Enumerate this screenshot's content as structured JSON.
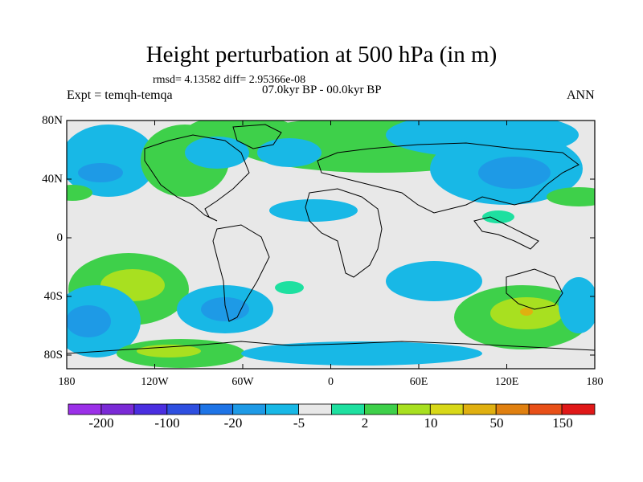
{
  "title": "Height perturbation at 500 hPa (in m)",
  "stats": "rmsd= 4.13582 diff= 2.95366e-08",
  "expt": "Expt = temqh-temqa",
  "period": "07.0kyr BP - 00.0kyr BP",
  "season": "ANN",
  "map": {
    "lat_labels": [
      "80N",
      "40N",
      "0",
      "40S",
      "80S"
    ],
    "lon_labels": [
      "180",
      "120W",
      "60W",
      "0",
      "60E",
      "120E",
      "180"
    ],
    "background_color": "#e8e8e8"
  },
  "colorbar": {
    "colors": [
      "#9b30e8",
      "#7a2ad6",
      "#4a2ee0",
      "#2e4fe0",
      "#1e74e6",
      "#1e9ae6",
      "#18b8e6",
      "#e8e8e8",
      "#1ee0a0",
      "#3ed04a",
      "#a8e020",
      "#d8d818",
      "#e0b010",
      "#e08010",
      "#e85018",
      "#e01818"
    ],
    "labels": [
      "-200",
      "-100",
      "-20",
      "-5",
      "2",
      "10",
      "50",
      "150"
    ]
  }
}
